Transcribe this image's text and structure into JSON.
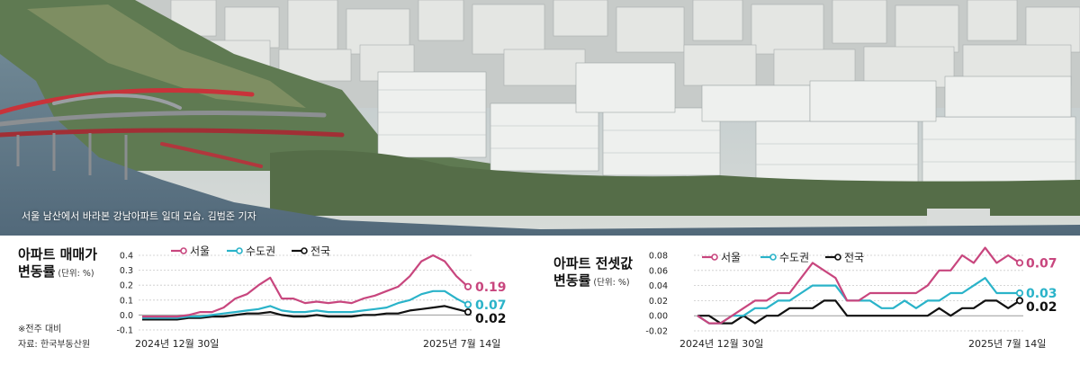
{
  "photo": {
    "caption": "서울 남산에서 바라본 강남아파트 일대 모습.   김범준 기자"
  },
  "notes": {
    "basis": "※전주 대비",
    "source": "자료: 한국부동산원"
  },
  "colors": {
    "seoul": "#c8467e",
    "capital": "#2ab3c9",
    "national": "#111111"
  },
  "chart_data": [
    {
      "type": "line",
      "title_line1": "아파트 매매가",
      "title_line2": "변동률",
      "unit": "(단위: %)",
      "x_start_label": "2024년 12월 30일",
      "x_end_label": "2025년 7월 14일",
      "ylim": [
        -0.1,
        0.4
      ],
      "yticks": [
        "0.4",
        "0.3",
        "0.2",
        "0.1",
        "0.0",
        "-0.1"
      ],
      "ytick_values": [
        0.4,
        0.3,
        0.2,
        0.1,
        0.0,
        -0.1
      ],
      "series": [
        {
          "name": "서울",
          "end_label": "0.19",
          "values": [
            -0.01,
            -0.01,
            -0.01,
            -0.01,
            0.0,
            0.02,
            0.02,
            0.05,
            0.11,
            0.14,
            0.2,
            0.25,
            0.11,
            0.11,
            0.08,
            0.09,
            0.08,
            0.09,
            0.08,
            0.11,
            0.13,
            0.16,
            0.19,
            0.26,
            0.36,
            0.4,
            0.36,
            0.26,
            0.19
          ]
        },
        {
          "name": "수도권",
          "end_label": "0.07",
          "values": [
            -0.02,
            -0.02,
            -0.02,
            -0.02,
            -0.01,
            -0.01,
            0.0,
            0.01,
            0.02,
            0.03,
            0.04,
            0.06,
            0.03,
            0.02,
            0.02,
            0.03,
            0.02,
            0.02,
            0.02,
            0.03,
            0.04,
            0.05,
            0.08,
            0.1,
            0.14,
            0.16,
            0.16,
            0.11,
            0.07
          ]
        },
        {
          "name": "전국",
          "end_label": "0.02",
          "values": [
            -0.03,
            -0.03,
            -0.03,
            -0.03,
            -0.02,
            -0.02,
            -0.01,
            -0.01,
            0.0,
            0.01,
            0.01,
            0.02,
            0.0,
            -0.01,
            -0.01,
            0.0,
            -0.01,
            -0.01,
            -0.01,
            0.0,
            0.0,
            0.01,
            0.01,
            0.03,
            0.04,
            0.05,
            0.06,
            0.04,
            0.02
          ]
        }
      ]
    },
    {
      "type": "line",
      "title_line1": "아파트 전셋값",
      "title_line2": "변동률",
      "unit": "(단위: %)",
      "x_start_label": "2024년 12월 30일",
      "x_end_label": "2025년 7월 14일",
      "ylim": [
        -0.02,
        0.08
      ],
      "yticks": [
        "0.08",
        "0.06",
        "0.04",
        "0.02",
        "0.00",
        "-0.02"
      ],
      "ytick_values": [
        0.08,
        0.06,
        0.04,
        0.02,
        0.0,
        -0.02
      ],
      "series": [
        {
          "name": "서울",
          "end_label": "0.07",
          "values": [
            0.0,
            -0.01,
            -0.01,
            0.0,
            0.01,
            0.02,
            0.02,
            0.03,
            0.03,
            0.05,
            0.07,
            0.06,
            0.05,
            0.02,
            0.02,
            0.03,
            0.03,
            0.03,
            0.03,
            0.03,
            0.04,
            0.06,
            0.06,
            0.08,
            0.07,
            0.09,
            0.07,
            0.08,
            0.07
          ]
        },
        {
          "name": "수도권",
          "end_label": "0.03",
          "values": [
            0.0,
            -0.01,
            -0.01,
            0.0,
            0.0,
            0.01,
            0.01,
            0.02,
            0.02,
            0.03,
            0.04,
            0.04,
            0.04,
            0.02,
            0.02,
            0.02,
            0.01,
            0.01,
            0.02,
            0.01,
            0.02,
            0.02,
            0.03,
            0.03,
            0.04,
            0.05,
            0.03,
            0.03,
            0.03
          ]
        },
        {
          "name": "전국",
          "end_label": "0.02",
          "values": [
            0.0,
            0.0,
            -0.01,
            -0.01,
            0.0,
            -0.01,
            0.0,
            0.0,
            0.01,
            0.01,
            0.01,
            0.02,
            0.02,
            0.0,
            0.0,
            0.0,
            0.0,
            0.0,
            0.0,
            0.0,
            0.0,
            0.01,
            0.0,
            0.01,
            0.01,
            0.02,
            0.02,
            0.01,
            0.02
          ]
        }
      ]
    }
  ]
}
